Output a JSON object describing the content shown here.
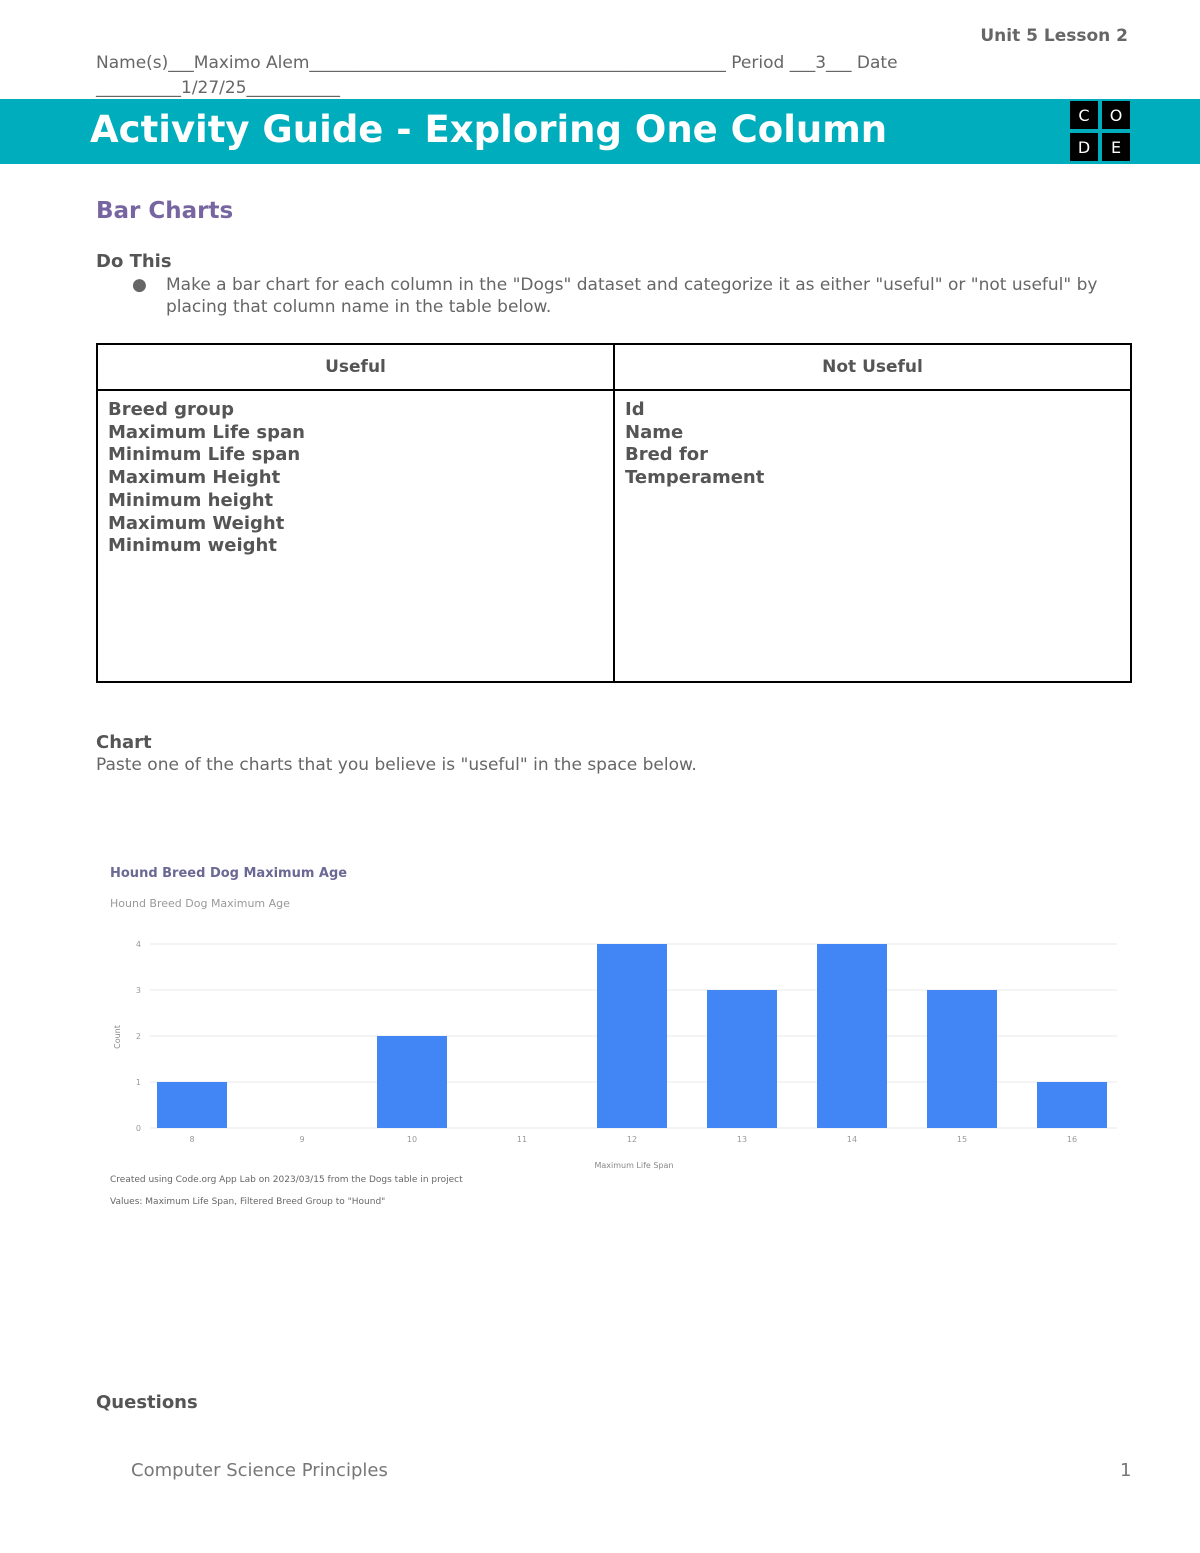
{
  "header": {
    "unit": "Unit 5 Lesson 2",
    "name_line": "Name(s)___Maximo Alem_________________________________________________ Period ___3___ Date",
    "date_line": "__________1/27/25___________",
    "title": "Activity Guide - Exploring One Column",
    "logo": [
      "C",
      "O",
      "D",
      "E"
    ]
  },
  "section": "Bar Charts",
  "do_this": {
    "heading": "Do This",
    "bullet": "Make a bar chart for each column in the \"Dogs\" dataset and categorize it as either \"useful\" or \"not useful\" by placing that column name in the table below."
  },
  "table": {
    "headers": [
      "Useful",
      "Not Useful"
    ],
    "useful": [
      "Breed group",
      "Maximum Life span",
      "Minimum Life span",
      "Maximum Height",
      "Minimum height",
      "Maximum Weight",
      "Minimum weight"
    ],
    "not_useful": [
      "Id",
      "Name",
      "Bred for",
      "Temperament"
    ]
  },
  "chart_section": {
    "heading": "Chart",
    "text": "Paste one of the charts that you believe is \"useful\" in the space below."
  },
  "chart_data": {
    "type": "bar",
    "title": "Hound Breed Dog Maximum Age",
    "subtitle": "Hound Breed Dog Maximum Age",
    "xlabel": "Maximum Life Span",
    "ylabel": "Count",
    "categories": [
      "8",
      "9",
      "10",
      "11",
      "12",
      "13",
      "14",
      "15",
      "16"
    ],
    "values": [
      1,
      0,
      2,
      0,
      4,
      3,
      4,
      3,
      1
    ],
    "ylim": [
      0,
      4
    ],
    "yticks": [
      "0",
      "1",
      "2",
      "3",
      "4"
    ],
    "grid": true,
    "color": "#4285f4",
    "footer": [
      "Created using Code.org App Lab on 2023/03/15 from the Dogs table in project",
      "Values: Maximum Life Span, Filtered Breed Group to \"Hound\""
    ]
  },
  "questions": "Questions",
  "footer": {
    "course": "Computer Science Principles",
    "page": "1"
  }
}
